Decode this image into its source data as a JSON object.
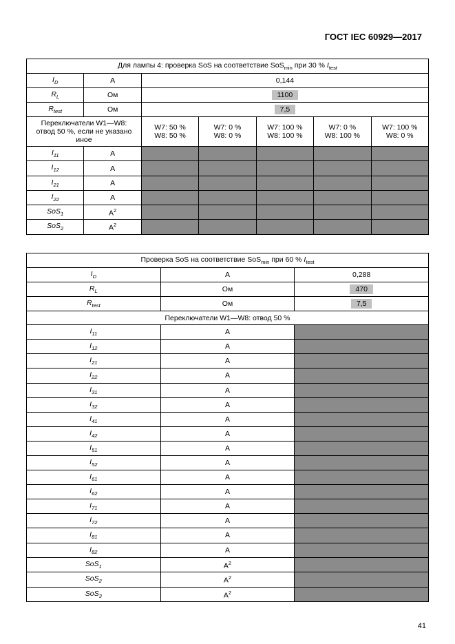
{
  "doc": {
    "title": "ГОСТ IEC 60929—2017",
    "pagenum": "41"
  },
  "t1": {
    "caption": "Для лампы 4: проверка SoS на соответствие SoS<sub>min</sub> при 30 % <i>I</i><sub>test</sub>",
    "row_ID": {
      "sym": "I<sub>D</sub>",
      "unit": "А",
      "val": "0,144"
    },
    "row_RL": {
      "sym": "R<sub>L</sub>",
      "unit": "Ом",
      "val": "1100"
    },
    "row_Rtest": {
      "sym": "R<sub>test</sub>",
      "unit": "Ом",
      "val": "7,5"
    },
    "tap_label": "Переключатели W1—W8:<br>отвод 50 %, если не указано иное",
    "taps": [
      {
        "a": "W7: 50 %",
        "b": "W8: 50 %"
      },
      {
        "a": "W7: 0 %",
        "b": "W8: 0 %"
      },
      {
        "a": "W7: 100 %",
        "b": "W8: 100 %"
      },
      {
        "a": "W7: 0 %",
        "b": "W8: 100 %"
      },
      {
        "a": "W7: 100 %",
        "b": "W8: 0 %"
      }
    ],
    "measure_rows": [
      {
        "sym": "I<sub>11</sub>",
        "unit": "А"
      },
      {
        "sym": "I<sub>12</sub>",
        "unit": "А"
      },
      {
        "sym": "I<sub>21</sub>",
        "unit": "А"
      },
      {
        "sym": "I<sub>22</sub>",
        "unit": "А"
      },
      {
        "sym": "SoS<sub>1</sub>",
        "unit": "А<sup>2</sup>"
      },
      {
        "sym": "SoS<sub>2</sub>",
        "unit": "А<sup>2</sup>"
      }
    ]
  },
  "t2": {
    "caption": "Проверка SoS на соответствие SoS<sub>min</sub> при 60 % <i>I</i><sub>test</sub>",
    "row_ID": {
      "sym": "I<sub>D</sub>",
      "unit": "А",
      "val": "0,288"
    },
    "row_RL": {
      "sym": "R<sub>L</sub>",
      "unit": "Ом",
      "val": "470"
    },
    "row_Rtest": {
      "sym": "R<sub>test</sub>",
      "unit": "Ом",
      "val": "7,5"
    },
    "tap_label": "Переключатели W1—W8: отвод 50 %",
    "measure_rows": [
      {
        "sym": "I<sub>11</sub>",
        "unit": "А"
      },
      {
        "sym": "I<sub>12</sub>",
        "unit": "А"
      },
      {
        "sym": "I<sub>21</sub>",
        "unit": "А"
      },
      {
        "sym": "I<sub>22</sub>",
        "unit": "А"
      },
      {
        "sym": "I<sub>31</sub>",
        "unit": "А"
      },
      {
        "sym": "I<sub>32</sub>",
        "unit": "А"
      },
      {
        "sym": "I<sub>41</sub>",
        "unit": "А"
      },
      {
        "sym": "I<sub>42</sub>",
        "unit": "А"
      },
      {
        "sym": "I<sub>51</sub>",
        "unit": "А"
      },
      {
        "sym": "I<sub>52</sub>",
        "unit": "А"
      },
      {
        "sym": "I<sub>61</sub>",
        "unit": "А"
      },
      {
        "sym": "I<sub>62</sub>",
        "unit": "А"
      },
      {
        "sym": "I<sub>71</sub>",
        "unit": "А"
      },
      {
        "sym": "I<sub>72</sub>",
        "unit": "А"
      },
      {
        "sym": "I<sub>81</sub>",
        "unit": "А"
      },
      {
        "sym": "I<sub>82</sub>",
        "unit": "А"
      },
      {
        "sym": "SoS<sub>1</sub>",
        "unit": "А<sup>2</sup>"
      },
      {
        "sym": "SoS<sub>2</sub>",
        "unit": "А<sup>2</sup>"
      },
      {
        "sym": "SoS<sub>3</sub>",
        "unit": "А<sup>2</sup>"
      }
    ]
  },
  "style": {
    "page_bg": "#ffffff",
    "border_color": "#000000",
    "shaded_bg": "#8b8b8b",
    "highlight_bg": "#c0c0c0",
    "text_color": "#000000",
    "font_family": "Arial",
    "font_size_pt": 8
  }
}
